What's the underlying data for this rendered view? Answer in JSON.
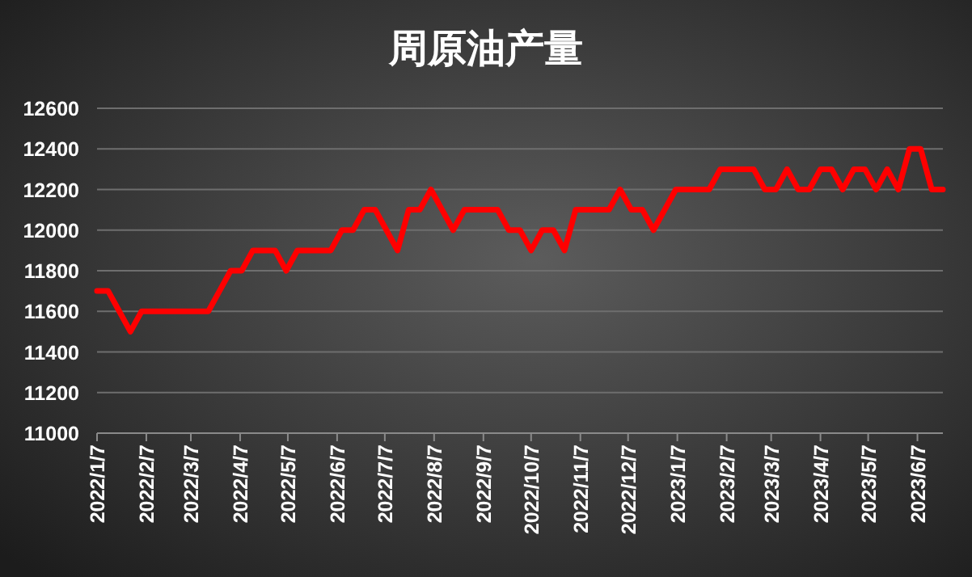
{
  "chart_data": {
    "type": "line",
    "title": "周原油产量",
    "x": [
      "2022-01-07",
      "2022-01-14",
      "2022-01-21",
      "2022-01-28",
      "2022-02-04",
      "2022-02-11",
      "2022-02-18",
      "2022-02-25",
      "2022-03-04",
      "2022-03-11",
      "2022-03-18",
      "2022-03-25",
      "2022-04-01",
      "2022-04-08",
      "2022-04-15",
      "2022-04-22",
      "2022-04-29",
      "2022-05-06",
      "2022-05-13",
      "2022-05-20",
      "2022-05-27",
      "2022-06-03",
      "2022-06-10",
      "2022-06-17",
      "2022-06-24",
      "2022-07-01",
      "2022-07-08",
      "2022-07-15",
      "2022-07-22",
      "2022-07-29",
      "2022-08-05",
      "2022-08-12",
      "2022-08-19",
      "2022-08-26",
      "2022-09-02",
      "2022-09-09",
      "2022-09-16",
      "2022-09-23",
      "2022-09-30",
      "2022-10-07",
      "2022-10-14",
      "2022-10-21",
      "2022-10-28",
      "2022-11-04",
      "2022-11-11",
      "2022-11-18",
      "2022-11-25",
      "2022-12-02",
      "2022-12-09",
      "2022-12-16",
      "2022-12-23",
      "2022-12-30",
      "2023-01-06",
      "2023-01-13",
      "2023-01-20",
      "2023-01-27",
      "2023-02-03",
      "2023-02-10",
      "2023-02-17",
      "2023-02-24",
      "2023-03-03",
      "2023-03-10",
      "2023-03-17",
      "2023-03-24",
      "2023-03-31",
      "2023-04-07",
      "2023-04-14",
      "2023-04-21",
      "2023-04-28",
      "2023-05-05",
      "2023-05-12",
      "2023-05-19",
      "2023-05-26",
      "2023-06-02",
      "2023-06-09",
      "2023-06-16",
      "2023-06-23"
    ],
    "series": [
      {
        "color": "#ff0000",
        "values": [
          11700,
          11700,
          11600,
          11500,
          11600,
          11600,
          11600,
          11600,
          11600,
          11600,
          11600,
          11700,
          11800,
          11800,
          11900,
          11900,
          11900,
          11800,
          11900,
          11900,
          11900,
          11900,
          12000,
          12000,
          12100,
          12100,
          12000,
          11900,
          12100,
          12100,
          12200,
          12100,
          12000,
          12100,
          12100,
          12100,
          12100,
          12000,
          12000,
          11900,
          12000,
          12000,
          11900,
          12100,
          12100,
          12100,
          12100,
          12200,
          12100,
          12100,
          12000,
          12100,
          12200,
          12200,
          12200,
          12200,
          12300,
          12300,
          12300,
          12300,
          12200,
          12200,
          12300,
          12200,
          12200,
          12300,
          12300,
          12200,
          12300,
          12300,
          12200,
          12300,
          12200,
          12400,
          12400,
          12200,
          12200
        ]
      }
    ],
    "xlim": [
      "2022-01-07",
      "2023-06-23"
    ],
    "xticks": [
      {
        "value": "2022-01-07",
        "label": "2022/1/7"
      },
      {
        "value": "2022-02-07",
        "label": "2022/2/7"
      },
      {
        "value": "2022-03-07",
        "label": "2022/3/7"
      },
      {
        "value": "2022-04-07",
        "label": "2022/4/7"
      },
      {
        "value": "2022-05-07",
        "label": "2022/5/7"
      },
      {
        "value": "2022-06-07",
        "label": "2022/6/7"
      },
      {
        "value": "2022-07-07",
        "label": "2022/7/7"
      },
      {
        "value": "2022-08-07",
        "label": "2022/8/7"
      },
      {
        "value": "2022-09-07",
        "label": "2022/9/7"
      },
      {
        "value": "2022-10-07",
        "label": "2022/10/7"
      },
      {
        "value": "2022-11-07",
        "label": "2022/11/7"
      },
      {
        "value": "2022-12-07",
        "label": "2022/12/7"
      },
      {
        "value": "2023-01-07",
        "label": "2023/1/7"
      },
      {
        "value": "2023-02-07",
        "label": "2023/2/7"
      },
      {
        "value": "2023-03-07",
        "label": "2023/3/7"
      },
      {
        "value": "2023-04-07",
        "label": "2023/4/7"
      },
      {
        "value": "2023-05-07",
        "label": "2023/5/7"
      },
      {
        "value": "2023-06-07",
        "label": "2023/6/7"
      }
    ],
    "ylim": [
      11000,
      12600
    ],
    "yticks": [
      11000,
      11200,
      11400,
      11600,
      11800,
      12000,
      12200,
      12400,
      12600
    ],
    "grid": "y",
    "line_style": "solid",
    "marker": "none"
  }
}
